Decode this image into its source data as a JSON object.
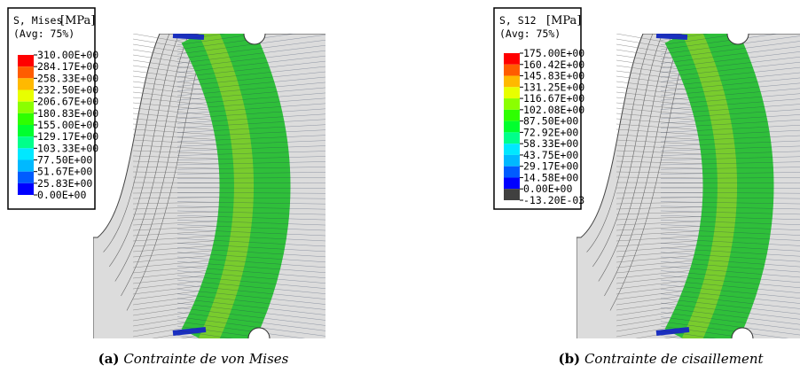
{
  "panels": [
    {
      "legend": {
        "title": "S, Mises",
        "unit": "[MPa]",
        "avg": "(Avg: 75%)",
        "levels": [
          "310.00E+00",
          "284.17E+00",
          "258.33E+00",
          "232.50E+00",
          "206.67E+00",
          "180.83E+00",
          "155.00E+00",
          "129.17E+00",
          "103.33E+00",
          "77.50E+00",
          "51.67E+00",
          "25.83E+00",
          "0.00E+00"
        ],
        "colors": [
          "#ff0000",
          "#ff5c00",
          "#ffb900",
          "#e8ff00",
          "#8bff00",
          "#2eff00",
          "#00ff2e",
          "#00ff8b",
          "#00e8ff",
          "#00b9ff",
          "#005cff",
          "#0000ff"
        ]
      },
      "caption": {
        "label": "(a)",
        "text": "Contrainte de von Mises"
      }
    },
    {
      "legend": {
        "title": "S, S12",
        "unit": "[MPa]",
        "avg": "(Avg: 75%)",
        "levels": [
          "175.00E+00",
          "160.42E+00",
          "145.83E+00",
          "131.25E+00",
          "116.67E+00",
          "102.08E+00",
          "87.50E+00",
          "72.92E+00",
          "58.33E+00",
          "43.75E+00",
          "29.17E+00",
          "14.58E+00",
          "0.00E+00",
          "-13.20E-03"
        ],
        "colors": [
          "#ff0000",
          "#ff5c00",
          "#ffb900",
          "#e8ff00",
          "#8bff00",
          "#2eff00",
          "#00ff2e",
          "#00ff8b",
          "#00e8ff",
          "#00b9ff",
          "#005cff",
          "#0000ff",
          "#404040"
        ]
      },
      "caption": {
        "label": "(b)",
        "text": "Contrainte de cisaillement"
      }
    }
  ]
}
